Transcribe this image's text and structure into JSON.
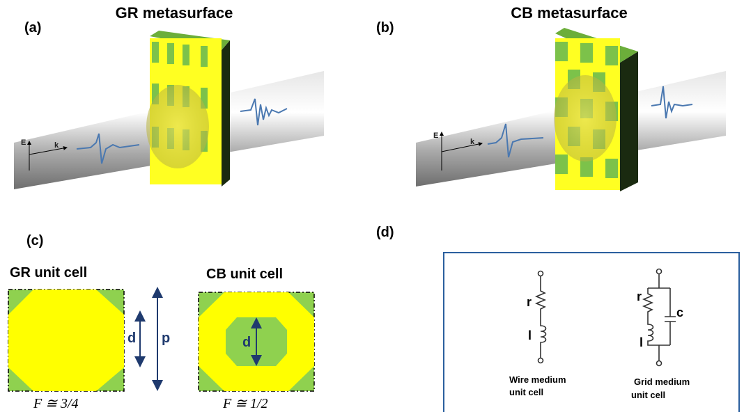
{
  "panels": {
    "a": {
      "label": "(a)",
      "title": "GR metasurface",
      "axis_e": "E",
      "axis_k": "k"
    },
    "b": {
      "label": "(b)",
      "title": "CB metasurface",
      "axis_e": "E",
      "axis_k": "k"
    },
    "c": {
      "label": "(c)",
      "gr": {
        "title": "GR unit cell",
        "d": "d",
        "p": "p",
        "fill_factor": "F ≅ 3/4"
      },
      "cb": {
        "title": "CB unit cell",
        "d": "d",
        "fill_factor": "F ≅ 1/2"
      }
    },
    "d": {
      "label": "(d)",
      "wire": {
        "r": "r",
        "l": "l",
        "caption": [
          "Wire medium",
          "unit cell"
        ]
      },
      "grid": {
        "r": "r",
        "c": "c",
        "l": "l",
        "caption": [
          "Grid medium",
          "unit cell"
        ]
      }
    }
  }
}
